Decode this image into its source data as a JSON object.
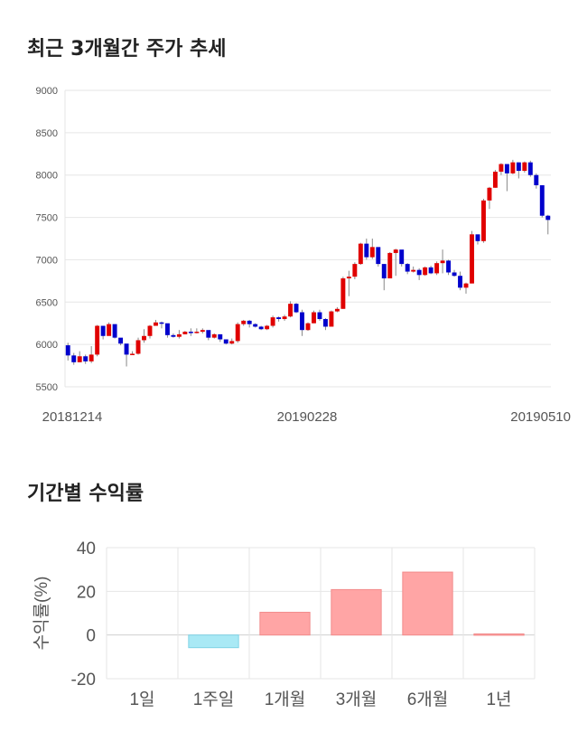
{
  "sections": {
    "price_title": "최근 3개월간 주가 추세",
    "return_title": "기간별 수익률"
  },
  "colors": {
    "up": "#e00000",
    "down": "#0000cc",
    "positive_bar": "#ffa5a5",
    "negative_bar": "#a9e9f5",
    "grid": "#e6e6e6"
  },
  "chart_data": [
    {
      "type": "candlestick",
      "title": "최근 3개월간 주가 추세",
      "ylim": [
        5500,
        9000
      ],
      "yticks": [
        5500,
        6000,
        6500,
        7000,
        7500,
        8000,
        8500,
        9000
      ],
      "x_tick_labels": [
        "20181214",
        "20190228",
        "20190510"
      ],
      "grid": true,
      "closes": [
        5870,
        5790,
        5860,
        5800,
        5880,
        6220,
        6100,
        6240,
        6080,
        6010,
        5880,
        5890,
        6050,
        6100,
        6220,
        6260,
        6250,
        6110,
        6090,
        6120,
        6150,
        6140,
        6150,
        6170,
        6080,
        6120,
        6060,
        6010,
        6040,
        6240,
        6280,
        6240,
        6210,
        6180,
        6220,
        6320,
        6300,
        6330,
        6480,
        6380,
        6170,
        6250,
        6380,
        6300,
        6210,
        6390,
        6420,
        6780,
        6800,
        6950,
        7190,
        7030,
        7150,
        6950,
        6780,
        7080,
        7120,
        6950,
        6860,
        6880,
        6820,
        6910,
        6840,
        6960,
        6990,
        6850,
        6810,
        6670,
        6720,
        7300,
        7220,
        7700,
        7850,
        8040,
        8130,
        8020,
        8150,
        8050,
        8150,
        8000,
        7880,
        7520,
        7470
      ],
      "highs": [
        6020,
        5900,
        5920,
        5880,
        5980,
        6230,
        6160,
        6260,
        6150,
        6060,
        5900,
        5920,
        6080,
        6180,
        6230,
        6290,
        6270,
        6220,
        6130,
        6170,
        6160,
        6190,
        6190,
        6190,
        6140,
        6130,
        6120,
        6040,
        6070,
        6260,
        6290,
        6290,
        6250,
        6220,
        6230,
        6340,
        6330,
        6350,
        6510,
        6490,
        6410,
        6260,
        6400,
        6410,
        6310,
        6400,
        6440,
        6800,
        6870,
        6970,
        7200,
        7250,
        7250,
        7130,
        6950,
        7090,
        7130,
        7010,
        6960,
        6920,
        6900,
        6920,
        6930,
        6980,
        7120,
        7000,
        6880,
        6860,
        6730,
        7340,
        7250,
        7720,
        7860,
        8060,
        8140,
        8100,
        8180,
        8150,
        8160,
        8170,
        8020,
        7880,
        7530
      ],
      "lows": [
        5810,
        5760,
        5790,
        5770,
        5780,
        5860,
        6060,
        6110,
        6070,
        5990,
        5740,
        5880,
        5880,
        6020,
        6070,
        6240,
        6190,
        6080,
        6080,
        6070,
        6120,
        6100,
        6130,
        6130,
        6050,
        6070,
        6030,
        6000,
        6000,
        6020,
        6220,
        6200,
        6200,
        6170,
        6170,
        6200,
        6270,
        6280,
        6320,
        6370,
        6100,
        6160,
        6250,
        6280,
        6170,
        6220,
        6380,
        6420,
        6570,
        6770,
        6940,
        7000,
        7010,
        6920,
        6640,
        6830,
        6810,
        6920,
        6830,
        6850,
        6760,
        6810,
        6830,
        6820,
        6840,
        6820,
        6800,
        6640,
        6600,
        6720,
        7180,
        7200,
        7600,
        7850,
        8000,
        7810,
        8010,
        7960,
        8030,
        7980,
        7840,
        7500,
        7300
      ]
    },
    {
      "type": "bar",
      "categories": [
        "1일",
        "1주일",
        "1개월",
        "3개월",
        "6개월",
        "1년"
      ],
      "values": [
        0,
        -5.8,
        10.4,
        20.8,
        28.8,
        0.5
      ],
      "ylabel": "수익률(%)",
      "ylim": [
        -20,
        40
      ],
      "yticks": [
        40,
        20,
        0,
        -20
      ],
      "grid": true
    }
  ]
}
